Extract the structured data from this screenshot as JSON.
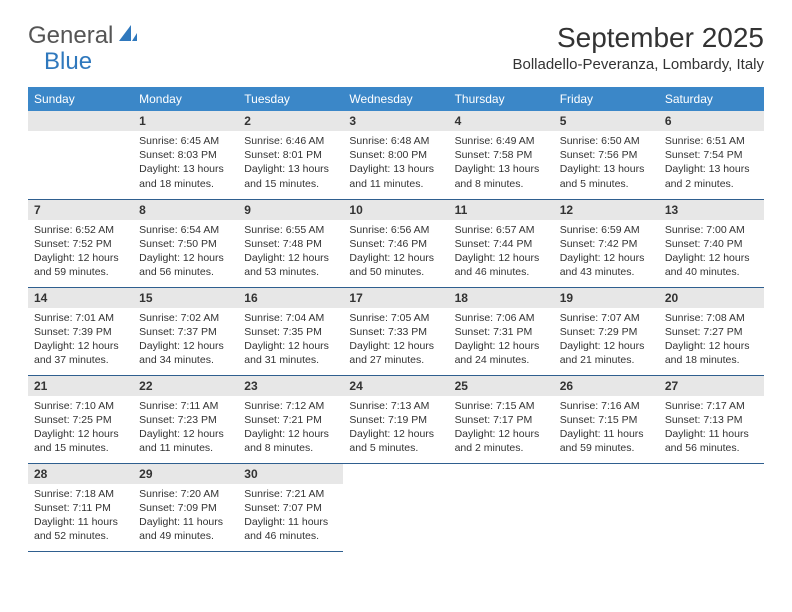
{
  "logo": {
    "text1": "General",
    "text2": "Blue"
  },
  "title": "September 2025",
  "location": "Bolladello-Peveranza, Lombardy, Italy",
  "colors": {
    "header_bg": "#3b87c8",
    "header_text": "#ffffff",
    "daynum_bg": "#e7e7e7",
    "cell_border": "#2f5f8f",
    "page_bg": "#ffffff",
    "body_text": "#333333",
    "logo_blue": "#2f78bd",
    "logo_gray": "#555555"
  },
  "typography": {
    "title_fontsize": 28,
    "location_fontsize": 15,
    "dow_fontsize": 12,
    "daynum_fontsize": 12,
    "body_fontsize": 10.5
  },
  "daysOfWeek": [
    "Sunday",
    "Monday",
    "Tuesday",
    "Wednesday",
    "Thursday",
    "Friday",
    "Saturday"
  ],
  "weeks": [
    [
      {
        "blank": true
      },
      {
        "num": "1",
        "sunrise": "Sunrise: 6:45 AM",
        "sunset": "Sunset: 8:03 PM",
        "daylight1": "Daylight: 13 hours",
        "daylight2": "and 18 minutes."
      },
      {
        "num": "2",
        "sunrise": "Sunrise: 6:46 AM",
        "sunset": "Sunset: 8:01 PM",
        "daylight1": "Daylight: 13 hours",
        "daylight2": "and 15 minutes."
      },
      {
        "num": "3",
        "sunrise": "Sunrise: 6:48 AM",
        "sunset": "Sunset: 8:00 PM",
        "daylight1": "Daylight: 13 hours",
        "daylight2": "and 11 minutes."
      },
      {
        "num": "4",
        "sunrise": "Sunrise: 6:49 AM",
        "sunset": "Sunset: 7:58 PM",
        "daylight1": "Daylight: 13 hours",
        "daylight2": "and 8 minutes."
      },
      {
        "num": "5",
        "sunrise": "Sunrise: 6:50 AM",
        "sunset": "Sunset: 7:56 PM",
        "daylight1": "Daylight: 13 hours",
        "daylight2": "and 5 minutes."
      },
      {
        "num": "6",
        "sunrise": "Sunrise: 6:51 AM",
        "sunset": "Sunset: 7:54 PM",
        "daylight1": "Daylight: 13 hours",
        "daylight2": "and 2 minutes."
      }
    ],
    [
      {
        "num": "7",
        "sunrise": "Sunrise: 6:52 AM",
        "sunset": "Sunset: 7:52 PM",
        "daylight1": "Daylight: 12 hours",
        "daylight2": "and 59 minutes."
      },
      {
        "num": "8",
        "sunrise": "Sunrise: 6:54 AM",
        "sunset": "Sunset: 7:50 PM",
        "daylight1": "Daylight: 12 hours",
        "daylight2": "and 56 minutes."
      },
      {
        "num": "9",
        "sunrise": "Sunrise: 6:55 AM",
        "sunset": "Sunset: 7:48 PM",
        "daylight1": "Daylight: 12 hours",
        "daylight2": "and 53 minutes."
      },
      {
        "num": "10",
        "sunrise": "Sunrise: 6:56 AM",
        "sunset": "Sunset: 7:46 PM",
        "daylight1": "Daylight: 12 hours",
        "daylight2": "and 50 minutes."
      },
      {
        "num": "11",
        "sunrise": "Sunrise: 6:57 AM",
        "sunset": "Sunset: 7:44 PM",
        "daylight1": "Daylight: 12 hours",
        "daylight2": "and 46 minutes."
      },
      {
        "num": "12",
        "sunrise": "Sunrise: 6:59 AM",
        "sunset": "Sunset: 7:42 PM",
        "daylight1": "Daylight: 12 hours",
        "daylight2": "and 43 minutes."
      },
      {
        "num": "13",
        "sunrise": "Sunrise: 7:00 AM",
        "sunset": "Sunset: 7:40 PM",
        "daylight1": "Daylight: 12 hours",
        "daylight2": "and 40 minutes."
      }
    ],
    [
      {
        "num": "14",
        "sunrise": "Sunrise: 7:01 AM",
        "sunset": "Sunset: 7:39 PM",
        "daylight1": "Daylight: 12 hours",
        "daylight2": "and 37 minutes."
      },
      {
        "num": "15",
        "sunrise": "Sunrise: 7:02 AM",
        "sunset": "Sunset: 7:37 PM",
        "daylight1": "Daylight: 12 hours",
        "daylight2": "and 34 minutes."
      },
      {
        "num": "16",
        "sunrise": "Sunrise: 7:04 AM",
        "sunset": "Sunset: 7:35 PM",
        "daylight1": "Daylight: 12 hours",
        "daylight2": "and 31 minutes."
      },
      {
        "num": "17",
        "sunrise": "Sunrise: 7:05 AM",
        "sunset": "Sunset: 7:33 PM",
        "daylight1": "Daylight: 12 hours",
        "daylight2": "and 27 minutes."
      },
      {
        "num": "18",
        "sunrise": "Sunrise: 7:06 AM",
        "sunset": "Sunset: 7:31 PM",
        "daylight1": "Daylight: 12 hours",
        "daylight2": "and 24 minutes."
      },
      {
        "num": "19",
        "sunrise": "Sunrise: 7:07 AM",
        "sunset": "Sunset: 7:29 PM",
        "daylight1": "Daylight: 12 hours",
        "daylight2": "and 21 minutes."
      },
      {
        "num": "20",
        "sunrise": "Sunrise: 7:08 AM",
        "sunset": "Sunset: 7:27 PM",
        "daylight1": "Daylight: 12 hours",
        "daylight2": "and 18 minutes."
      }
    ],
    [
      {
        "num": "21",
        "sunrise": "Sunrise: 7:10 AM",
        "sunset": "Sunset: 7:25 PM",
        "daylight1": "Daylight: 12 hours",
        "daylight2": "and 15 minutes."
      },
      {
        "num": "22",
        "sunrise": "Sunrise: 7:11 AM",
        "sunset": "Sunset: 7:23 PM",
        "daylight1": "Daylight: 12 hours",
        "daylight2": "and 11 minutes."
      },
      {
        "num": "23",
        "sunrise": "Sunrise: 7:12 AM",
        "sunset": "Sunset: 7:21 PM",
        "daylight1": "Daylight: 12 hours",
        "daylight2": "and 8 minutes."
      },
      {
        "num": "24",
        "sunrise": "Sunrise: 7:13 AM",
        "sunset": "Sunset: 7:19 PM",
        "daylight1": "Daylight: 12 hours",
        "daylight2": "and 5 minutes."
      },
      {
        "num": "25",
        "sunrise": "Sunrise: 7:15 AM",
        "sunset": "Sunset: 7:17 PM",
        "daylight1": "Daylight: 12 hours",
        "daylight2": "and 2 minutes."
      },
      {
        "num": "26",
        "sunrise": "Sunrise: 7:16 AM",
        "sunset": "Sunset: 7:15 PM",
        "daylight1": "Daylight: 11 hours",
        "daylight2": "and 59 minutes."
      },
      {
        "num": "27",
        "sunrise": "Sunrise: 7:17 AM",
        "sunset": "Sunset: 7:13 PM",
        "daylight1": "Daylight: 11 hours",
        "daylight2": "and 56 minutes."
      }
    ],
    [
      {
        "num": "28",
        "sunrise": "Sunrise: 7:18 AM",
        "sunset": "Sunset: 7:11 PM",
        "daylight1": "Daylight: 11 hours",
        "daylight2": "and 52 minutes."
      },
      {
        "num": "29",
        "sunrise": "Sunrise: 7:20 AM",
        "sunset": "Sunset: 7:09 PM",
        "daylight1": "Daylight: 11 hours",
        "daylight2": "and 49 minutes."
      },
      {
        "num": "30",
        "sunrise": "Sunrise: 7:21 AM",
        "sunset": "Sunset: 7:07 PM",
        "daylight1": "Daylight: 11 hours",
        "daylight2": "and 46 minutes."
      },
      {
        "blank": true
      },
      {
        "blank": true
      },
      {
        "blank": true
      },
      {
        "blank": true
      }
    ]
  ]
}
